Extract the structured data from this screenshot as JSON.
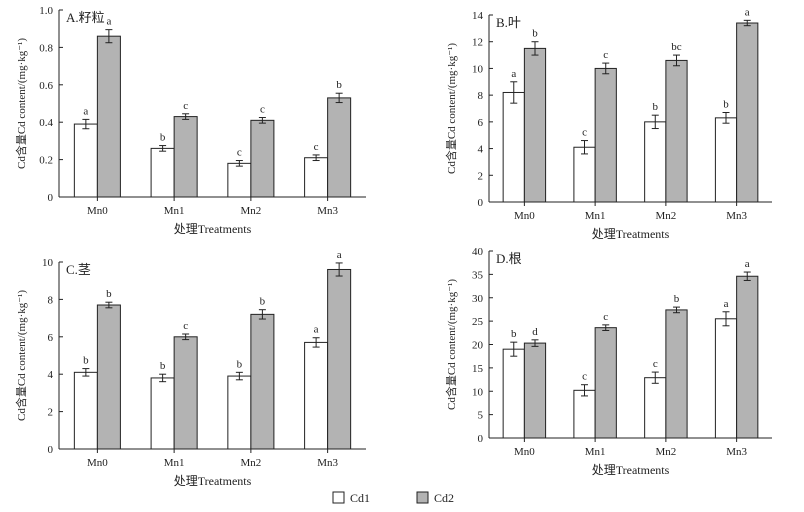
{
  "legend": {
    "items": [
      {
        "label": "Cd1",
        "color": "#ffffff"
      },
      {
        "label": "Cd2",
        "color": "#b3b3b3"
      }
    ]
  },
  "chart_data": [
    {
      "type": "bar",
      "title": "A.籽粒",
      "categories": [
        "Mn0",
        "Mn1",
        "Mn2",
        "Mn3"
      ],
      "xlabel": "处理Treatments",
      "ylabel": "Cd含量Cd content/(mg·kg⁻¹)",
      "ylim": [
        0,
        1.0
      ],
      "yticks": [
        "0",
        "0.2",
        "0.4",
        "0.6",
        "0.8",
        "1.0"
      ],
      "series": [
        {
          "name": "Cd1",
          "values": [
            0.39,
            0.26,
            0.18,
            0.21
          ],
          "errors": [
            0.025,
            0.015,
            0.015,
            0.015
          ],
          "letters": [
            "a",
            "b",
            "c",
            "c"
          ]
        },
        {
          "name": "Cd2",
          "values": [
            0.86,
            0.43,
            0.41,
            0.53
          ],
          "errors": [
            0.035,
            0.015,
            0.015,
            0.025
          ],
          "letters": [
            "a",
            "c",
            "c",
            "b"
          ]
        }
      ]
    },
    {
      "type": "bar",
      "title": "B.叶",
      "categories": [
        "Mn0",
        "Mn1",
        "Mn2",
        "Mn3"
      ],
      "xlabel": "处理Treatments",
      "ylabel": "Cd含量Cd content/(mg·kg⁻¹)",
      "ylim": [
        0,
        14
      ],
      "yticks": [
        "0",
        "2",
        "4",
        "6",
        "8",
        "10",
        "12",
        "14"
      ],
      "series": [
        {
          "name": "Cd1",
          "values": [
            8.2,
            4.1,
            6.0,
            6.3
          ],
          "errors": [
            0.8,
            0.5,
            0.5,
            0.4
          ],
          "letters": [
            "a",
            "c",
            "b",
            "b"
          ]
        },
        {
          "name": "Cd2",
          "values": [
            11.5,
            10.0,
            10.6,
            13.4
          ],
          "errors": [
            0.5,
            0.4,
            0.4,
            0.2
          ],
          "letters": [
            "b",
            "c",
            "bc",
            "a"
          ]
        }
      ]
    },
    {
      "type": "bar",
      "title": "C.茎",
      "categories": [
        "Mn0",
        "Mn1",
        "Mn2",
        "Mn3"
      ],
      "xlabel": "处理Treatments",
      "ylabel": "Cd含量Cd content/(mg·kg⁻¹)",
      "ylim": [
        0,
        10
      ],
      "yticks": [
        "0",
        "2",
        "4",
        "6",
        "8",
        "10"
      ],
      "series": [
        {
          "name": "Cd1",
          "values": [
            4.1,
            3.8,
            3.9,
            5.7
          ],
          "errors": [
            0.2,
            0.2,
            0.2,
            0.25
          ],
          "letters": [
            "b",
            "b",
            "b",
            "a"
          ]
        },
        {
          "name": "Cd2",
          "values": [
            7.7,
            6.0,
            7.2,
            9.6
          ],
          "errors": [
            0.15,
            0.15,
            0.25,
            0.35
          ],
          "letters": [
            "b",
            "c",
            "b",
            "a"
          ]
        }
      ]
    },
    {
      "type": "bar",
      "title": "D.根",
      "categories": [
        "Mn0",
        "Mn1",
        "Mn2",
        "Mn3"
      ],
      "xlabel": "处理Treatments",
      "ylabel": "Cd含量Cd content/(mg·kg⁻¹)",
      "ylim": [
        0,
        40
      ],
      "yticks": [
        "0",
        "5",
        "10",
        "15",
        "20",
        "25",
        "30",
        "35",
        "40"
      ],
      "series": [
        {
          "name": "Cd1",
          "values": [
            19.0,
            10.2,
            12.9,
            25.5
          ],
          "errors": [
            1.5,
            1.2,
            1.2,
            1.5
          ],
          "letters": [
            "b",
            "c",
            "c",
            "a"
          ]
        },
        {
          "name": "Cd2",
          "values": [
            20.3,
            23.6,
            27.4,
            34.6
          ],
          "errors": [
            0.7,
            0.6,
            0.6,
            0.9
          ],
          "letters": [
            "d",
            "c",
            "b",
            "a"
          ]
        }
      ]
    }
  ]
}
